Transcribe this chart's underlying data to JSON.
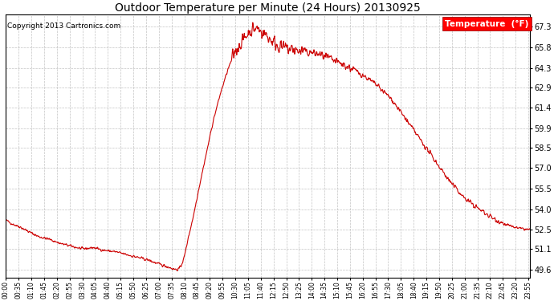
{
  "title": "Outdoor Temperature per Minute (24 Hours) 20130925",
  "copyright": "Copyright 2013 Cartronics.com",
  "legend_label": "Temperature  (°F)",
  "line_color": "#cc0000",
  "background_color": "#ffffff",
  "grid_color": "#aaaaaa",
  "yticks": [
    49.6,
    51.1,
    52.5,
    54.0,
    55.5,
    57.0,
    58.5,
    59.9,
    61.4,
    62.9,
    64.3,
    65.8,
    67.3
  ],
  "ylim": [
    49.0,
    68.2
  ],
  "total_minutes": 1440,
  "figsize": [
    6.9,
    3.75
  ],
  "dpi": 100
}
